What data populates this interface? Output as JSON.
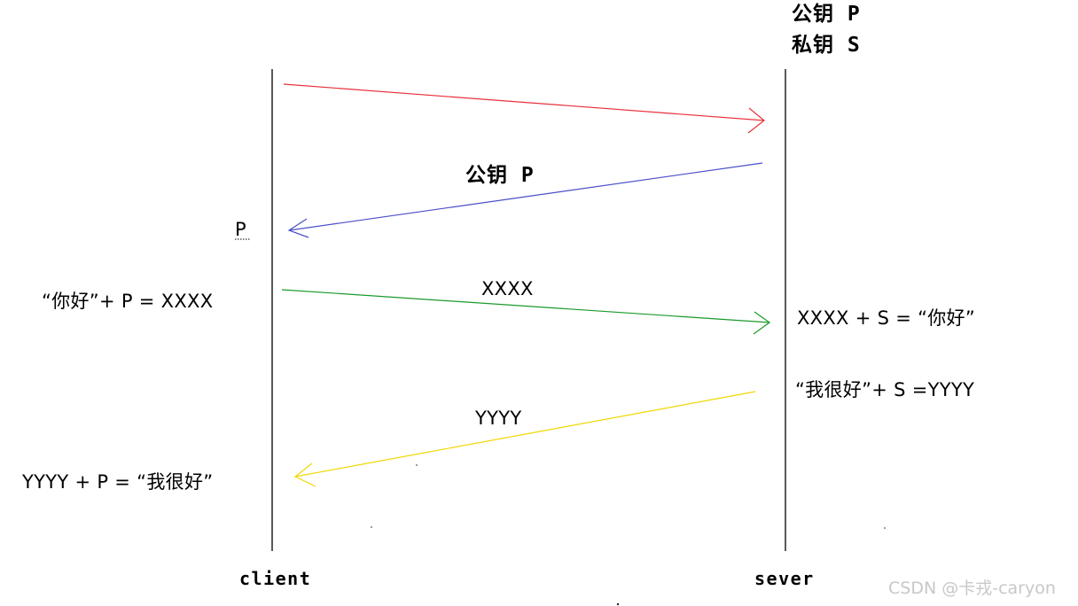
{
  "server_keys": {
    "public_key": "公钥 P",
    "private_key": "私钥 S"
  },
  "lifelines": {
    "client": "client",
    "server": "sever"
  },
  "messages": {
    "public_key_label": "公钥 P",
    "client_receives": "P",
    "client_encrypt": "“你好”+ P = XXXX",
    "msg1_label": "XXXX",
    "server_decrypt": "XXXX + S = “你好”",
    "server_encrypt": "“我很好”+ S =YYYY",
    "msg2_label": "YYYY",
    "client_decrypt": "YYYY + P = “我很好”"
  },
  "arrow_colors": {
    "request": "#e8303a",
    "public_key": "#4a4ec8",
    "encrypted_hello": "#1a9a2a",
    "encrypted_reply": "#f0d800"
  },
  "watermark": "CSDN @卡戎-caryon"
}
